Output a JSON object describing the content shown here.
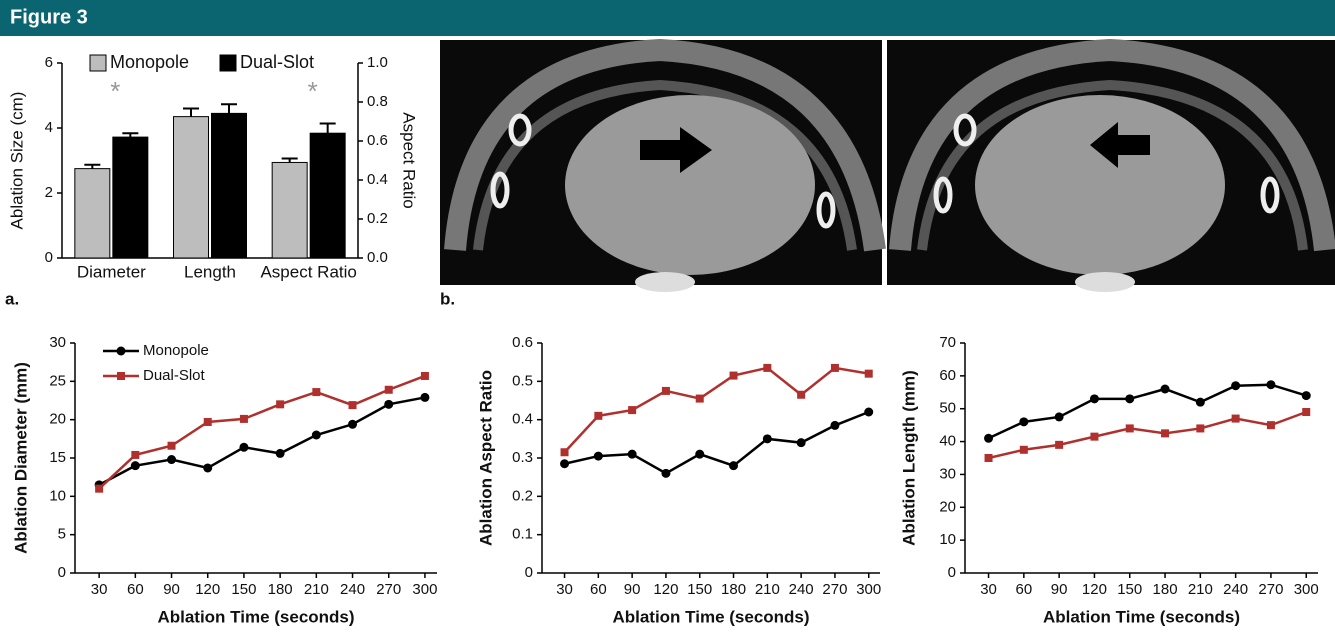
{
  "header": {
    "title": "Figure 3"
  },
  "panel_labels": [
    "a.",
    "b."
  ],
  "chart_data": [
    {
      "type": "bar",
      "categories": [
        "Diameter",
        "Length",
        "Aspect Ratio"
      ],
      "ylabel": "Ablation Size (cm)",
      "ylim": [
        0,
        6
      ],
      "yticks": [
        0,
        2,
        4,
        6
      ],
      "y2label": "Aspect Ratio",
      "y2lim": [
        0,
        1
      ],
      "y2ticks": [
        {
          "value": 0,
          "label": "0.0"
        },
        0.2,
        0.4,
        0.6,
        0.8,
        {
          "value": 1,
          "label": "1.0"
        }
      ],
      "annotations": [
        "*",
        null,
        "*"
      ],
      "legend": "top",
      "series": [
        {
          "name": "Monopole",
          "color": "#bdbdbd",
          "values": [
            2.75,
            4.35,
            null
          ],
          "errors": [
            0.12,
            0.25,
            null
          ]
        },
        {
          "name": "Dual-Slot",
          "color": "#000000",
          "values": [
            3.72,
            4.45,
            null
          ],
          "errors": [
            0.12,
            0.28,
            null
          ]
        },
        {
          "name": "Monopole",
          "color": "#bdbdbd",
          "axis": "y2",
          "values": [
            null,
            null,
            0.49
          ],
          "errors": [
            null,
            null,
            0.02
          ]
        },
        {
          "name": "Dual-Slot",
          "color": "#000000",
          "axis": "y2",
          "values": [
            null,
            null,
            0.64
          ],
          "errors": [
            null,
            null,
            0.05
          ]
        }
      ]
    },
    {
      "type": "line",
      "xlabel": "Ablation Time (seconds)",
      "ylabel": "Ablation Diameter (mm)",
      "x": [
        30,
        60,
        90,
        120,
        150,
        180,
        210,
        240,
        270,
        300
      ],
      "xlim": [
        10,
        310
      ],
      "xticks": [
        30,
        60,
        90,
        120,
        150,
        180,
        210,
        240,
        270,
        300
      ],
      "ylim": [
        0,
        30
      ],
      "yticks": [
        0,
        5,
        10,
        15,
        20,
        25,
        30
      ],
      "legend": "upper left",
      "series": [
        {
          "name": "Monopole",
          "color": "#000000",
          "marker": "circle",
          "values": [
            11.5,
            14,
            14.8,
            13.7,
            16.4,
            15.6,
            18,
            19.4,
            22,
            22.9
          ]
        },
        {
          "name": "Dual-Slot",
          "color": "#b0302e",
          "marker": "square",
          "values": [
            11,
            15.4,
            16.6,
            19.7,
            20.1,
            22,
            23.6,
            21.9,
            23.9,
            25.7
          ]
        }
      ]
    },
    {
      "type": "line",
      "xlabel": "Ablation Time (seconds)",
      "ylabel": "Ablation Aspect Ratio",
      "x": [
        30,
        60,
        90,
        120,
        150,
        180,
        210,
        240,
        270,
        300
      ],
      "xlim": [
        10,
        310
      ],
      "xticks": [
        30,
        60,
        90,
        120,
        150,
        180,
        210,
        240,
        270,
        300
      ],
      "ylim": [
        0,
        0.6
      ],
      "yticks": [
        0,
        0.1,
        0.2,
        0.3,
        0.4,
        0.5,
        0.6
      ],
      "series": [
        {
          "name": "Monopole",
          "color": "#000000",
          "marker": "circle",
          "values": [
            0.285,
            0.305,
            0.31,
            0.26,
            0.31,
            0.28,
            0.35,
            0.34,
            0.385,
            0.42
          ]
        },
        {
          "name": "Dual-Slot",
          "color": "#b0302e",
          "marker": "square",
          "values": [
            0.315,
            0.41,
            0.425,
            0.475,
            0.455,
            0.515,
            0.535,
            0.465,
            0.535,
            0.52
          ]
        }
      ]
    },
    {
      "type": "line",
      "xlabel": "Ablation Time (seconds)",
      "ylabel": "Ablation Length (mm)",
      "x": [
        30,
        60,
        90,
        120,
        150,
        180,
        210,
        240,
        270,
        300
      ],
      "xlim": [
        10,
        310
      ],
      "xticks": [
        30,
        60,
        90,
        120,
        150,
        180,
        210,
        240,
        270,
        300
      ],
      "ylim": [
        0,
        70
      ],
      "yticks": [
        0,
        10,
        20,
        30,
        40,
        50,
        60,
        70
      ],
      "series": [
        {
          "name": "Monopole",
          "color": "#000000",
          "marker": "circle",
          "values": [
            41,
            46,
            47.5,
            53,
            53,
            56,
            52,
            57,
            57.3,
            54
          ]
        },
        {
          "name": "Dual-Slot",
          "color": "#b0302e",
          "marker": "square",
          "values": [
            35,
            37.5,
            39,
            41.5,
            44,
            42.5,
            44,
            47,
            45,
            49
          ]
        }
      ]
    }
  ]
}
